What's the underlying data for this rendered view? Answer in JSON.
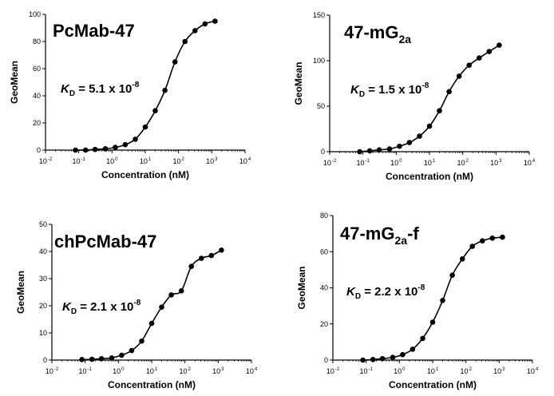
{
  "chart_data": [
    {
      "type": "scatter",
      "title": "PcMab-47",
      "title_main": "PcMab-47",
      "title_sub": "",
      "title_suffix": "",
      "kd_label": "K",
      "kd_sub": "D",
      "kd_text": " = 5.1 x 10",
      "kd_exp": "-8",
      "xlabel": "Concentration (nM)",
      "ylabel": "GeoMean",
      "xscale": "log",
      "xlim_exp": [
        -2,
        4
      ],
      "x_tick_exps": [
        "-2",
        "-1",
        "0",
        "1",
        "2",
        "3",
        "4"
      ],
      "ylim": [
        0,
        100
      ],
      "y_ticks": [
        0,
        20,
        40,
        60,
        80,
        100
      ],
      "curve_color": "#000000",
      "series": [
        {
          "x": [
            0.08,
            0.16,
            0.31,
            0.63,
            1.25,
            2.5,
            5,
            10,
            20,
            39,
            78,
            156,
            313,
            625,
            1250
          ],
          "y": [
            0,
            0,
            0.5,
            1,
            2,
            4,
            8,
            17,
            29,
            44,
            65,
            80,
            88,
            93,
            95
          ]
        }
      ]
    },
    {
      "type": "scatter",
      "title": "47-mG2a",
      "title_main": "47-mG",
      "title_sub": "2a",
      "title_suffix": "",
      "kd_label": "K",
      "kd_sub": "D",
      "kd_text": " = 1.5 x 10",
      "kd_exp": "-8",
      "xlabel": "Concentration (nM)",
      "ylabel": "GeoMean",
      "xscale": "log",
      "xlim_exp": [
        -2,
        4
      ],
      "x_tick_exps": [
        "-2",
        "-1",
        "0",
        "1",
        "2",
        "3",
        "4"
      ],
      "ylim": [
        0,
        150
      ],
      "y_ticks": [
        0,
        50,
        100,
        150
      ],
      "curve_color": "#000000",
      "series": [
        {
          "x": [
            0.08,
            0.16,
            0.31,
            0.63,
            1.25,
            2.5,
            5,
            10,
            20,
            39,
            78,
            156,
            313,
            625,
            1250
          ],
          "y": [
            0,
            1,
            2,
            3,
            6,
            10,
            17,
            28,
            45,
            66,
            83,
            95,
            103,
            110,
            117
          ]
        }
      ]
    },
    {
      "type": "scatter",
      "title": "chPcMab-47",
      "title_main": "chPcMab-47",
      "title_sub": "",
      "title_suffix": "",
      "kd_label": "K",
      "kd_sub": "D",
      "kd_text": " = 2.1 x 10",
      "kd_exp": "-8",
      "xlabel": "Concentration (nM)",
      "ylabel": "GeoMean",
      "xscale": "log",
      "xlim_exp": [
        -2,
        4
      ],
      "x_tick_exps": [
        "-2",
        "-1",
        "0",
        "1",
        "2",
        "3",
        "4"
      ],
      "ylim": [
        0,
        50
      ],
      "y_ticks": [
        0,
        10,
        20,
        30,
        40,
        50
      ],
      "curve_color": "#000000",
      "series": [
        {
          "x": [
            0.08,
            0.16,
            0.31,
            0.63,
            1.25,
            2.5,
            5,
            10,
            20,
            39,
            78,
            156,
            313,
            625,
            1250
          ],
          "y": [
            0.2,
            0.3,
            0.5,
            0.8,
            1.8,
            3.5,
            7,
            13.5,
            19.5,
            24,
            25.5,
            34.5,
            37.5,
            38.5,
            40.5
          ]
        }
      ]
    },
    {
      "type": "scatter",
      "title": "47-mG2a-f",
      "title_main": "47-mG",
      "title_sub": "2a",
      "title_suffix": "-f",
      "kd_label": "K",
      "kd_sub": "D",
      "kd_text": " = 2.2 x 10",
      "kd_exp": "-8",
      "xlabel": "Concentration (nM)",
      "ylabel": "GeoMean",
      "xscale": "log",
      "xlim_exp": [
        -2,
        4
      ],
      "x_tick_exps": [
        "-2",
        "-1",
        "0",
        "1",
        "2",
        "3",
        "4"
      ],
      "ylim": [
        0,
        80
      ],
      "y_ticks": [
        0,
        20,
        40,
        60,
        80
      ],
      "curve_color": "#000000",
      "series": [
        {
          "x": [
            0.08,
            0.16,
            0.31,
            0.63,
            1.25,
            2.5,
            5,
            10,
            20,
            39,
            78,
            156,
            313,
            625,
            1250
          ],
          "y": [
            0,
            0.3,
            0.8,
            1.5,
            3,
            6,
            12,
            21,
            33,
            47,
            56,
            63,
            66,
            67.5,
            68
          ]
        }
      ]
    }
  ]
}
